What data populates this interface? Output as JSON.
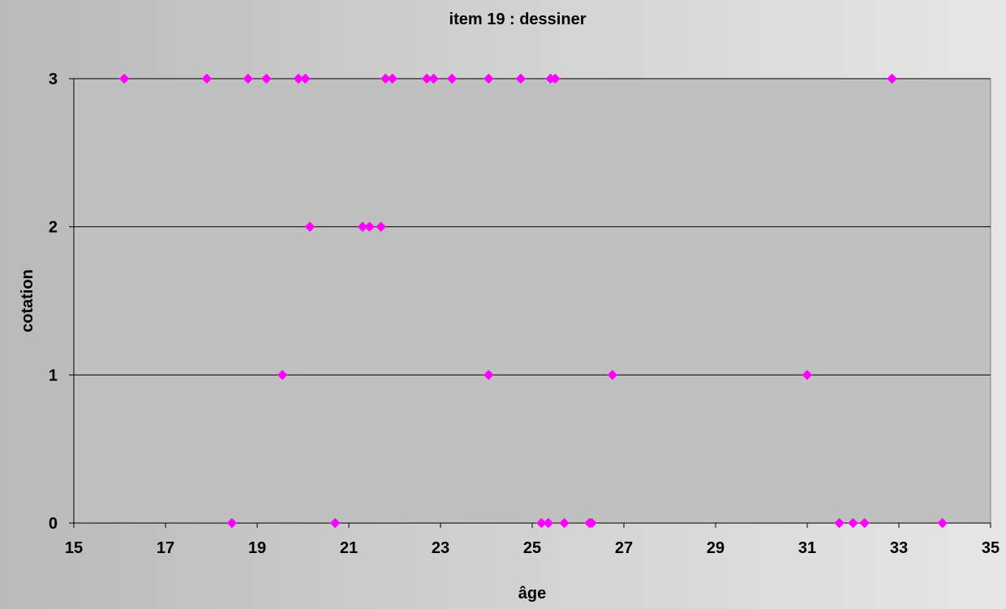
{
  "chart_data": {
    "type": "scatter",
    "title": "item 19 : dessiner",
    "xlabel": "âge",
    "ylabel": "cotation",
    "xlim": [
      15,
      35
    ],
    "ylim": [
      0,
      3
    ],
    "xticks": [
      15,
      17,
      19,
      21,
      23,
      25,
      27,
      29,
      31,
      33,
      35
    ],
    "yticks": [
      0,
      1,
      2,
      3
    ],
    "grid": "horizontal",
    "legend": "none",
    "series": [
      {
        "marker": "diamond",
        "color": "#ff00ff",
        "points": [
          [
            16.1,
            3
          ],
          [
            17.9,
            3
          ],
          [
            18.8,
            3
          ],
          [
            19.2,
            3
          ],
          [
            19.9,
            3
          ],
          [
            20.05,
            3
          ],
          [
            21.8,
            3
          ],
          [
            21.95,
            3
          ],
          [
            22.7,
            3
          ],
          [
            22.85,
            3
          ],
          [
            23.25,
            3
          ],
          [
            24.05,
            3
          ],
          [
            24.75,
            3
          ],
          [
            25.4,
            3
          ],
          [
            25.5,
            3
          ],
          [
            32.85,
            3
          ],
          [
            20.15,
            2
          ],
          [
            21.3,
            2
          ],
          [
            21.45,
            2
          ],
          [
            21.7,
            2
          ],
          [
            19.55,
            1
          ],
          [
            24.05,
            1
          ],
          [
            26.75,
            1
          ],
          [
            31.0,
            1
          ],
          [
            18.45,
            0
          ],
          [
            20.7,
            0
          ],
          [
            25.2,
            0
          ],
          [
            25.35,
            0
          ],
          [
            25.7,
            0
          ],
          [
            26.25,
            0
          ],
          [
            26.3,
            0
          ],
          [
            31.7,
            0
          ],
          [
            32.0,
            0
          ],
          [
            32.25,
            0
          ],
          [
            33.95,
            0
          ]
        ]
      }
    ]
  }
}
